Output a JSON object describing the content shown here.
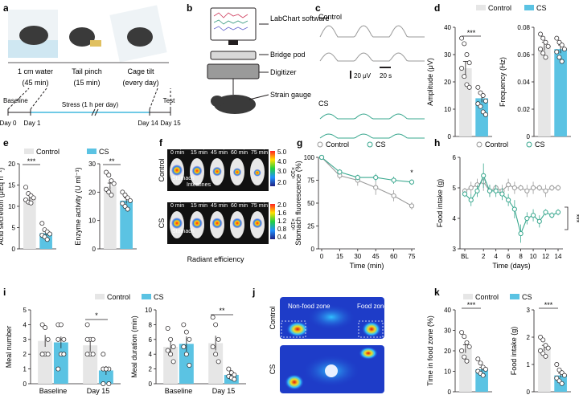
{
  "colors": {
    "control": "#e6e6e6",
    "cs": "#5bc3e3",
    "cs_line": "#3aa88f",
    "control_line": "#9a9a9a",
    "axis": "#231f20"
  },
  "panel_labels": [
    "a",
    "b",
    "c",
    "d",
    "e",
    "f",
    "g",
    "h",
    "i",
    "j",
    "k"
  ],
  "a": {
    "stress_labels": [
      "1 cm water",
      "Tail pinch",
      "Cage tilt"
    ],
    "durations": [
      "(45 min)",
      "(15 min)",
      "(every day)"
    ],
    "timeline": {
      "baseline": "Baseline",
      "stress": "Stress (1 h per day)",
      "test": "Test",
      "days": [
        "Day 0",
        "Day 1",
        "Day 14",
        "Day 15"
      ]
    }
  },
  "b": {
    "labels": [
      "LabChart software",
      "Bridge pod",
      "Digitizer",
      "Strain gauge"
    ]
  },
  "c": {
    "control": "Control",
    "cs": "CS",
    "scale_y": "20 μV",
    "scale_x": "20 s"
  },
  "legend": {
    "control": "Control",
    "cs": "CS"
  },
  "d": {
    "sig": "***"
  },
  "e": {
    "sig1": "***",
    "sig2": "**"
  },
  "f": {
    "cb_ticks": [
      "5.0",
      "4.0",
      "3.0",
      "2.0"
    ],
    "cb2_ticks": [
      "2.0",
      "1.6",
      "1.2",
      "0.8",
      "0.4"
    ],
    "exponent": "×10⁶",
    "times": [
      "0 min",
      "15 min",
      "45 min",
      "60 min",
      "75 min"
    ],
    "stomach": "Stomach",
    "intestine": "Intestines",
    "row_control": "Control",
    "row_cs": "CS",
    "xlabel": "Radiant efficiency"
  },
  "g": {
    "sig": "*"
  },
  "h": {
    "sig": "***"
  },
  "i": {
    "sig1": "*",
    "sig2": "**"
  },
  "j": {
    "nonfood": "Non-food zone",
    "food": "Food zone",
    "row_control": "Control",
    "row_cs": "CS"
  },
  "k": {
    "sig1": "***",
    "sig2": "***"
  },
  "chart_data": [
    {
      "id": "d1",
      "type": "bar",
      "categories": [
        "Control",
        "CS"
      ],
      "values": [
        25,
        14
      ],
      "errors": [
        2.5,
        1.5
      ],
      "ylabel": "Amplitude (μV)",
      "ylim": [
        0,
        40
      ],
      "yticks": [
        0,
        10,
        20,
        30,
        40
      ],
      "points": [
        [
          36,
          34,
          30,
          27,
          25,
          22,
          19,
          18
        ],
        [
          18,
          16,
          15,
          13,
          12,
          11,
          9,
          8
        ]
      ]
    },
    {
      "id": "d2",
      "type": "bar",
      "categories": [
        "Control",
        "CS"
      ],
      "values": [
        0.066,
        0.064
      ],
      "errors": [
        0.003,
        0.003
      ],
      "ylabel": "Frequency (Hz)",
      "ylim": [
        0,
        0.08
      ],
      "yticks": [
        0,
        0.02,
        0.04,
        0.06,
        0.08
      ],
      "points": [
        [
          0.075,
          0.072,
          0.069,
          0.066,
          0.064,
          0.061,
          0.058
        ],
        [
          0.072,
          0.069,
          0.067,
          0.064,
          0.062,
          0.058,
          0.055
        ]
      ]
    },
    {
      "id": "e1",
      "type": "bar",
      "categories": [
        "Control",
        "CS"
      ],
      "values": [
        12,
        3.7
      ],
      "errors": [
        0.6,
        0.5
      ],
      "ylabel": "Acid secretion (μEq h⁻¹)",
      "ylim": [
        0,
        20
      ],
      "yticks": [
        0,
        5,
        10,
        15,
        20
      ],
      "points": [
        [
          14.5,
          13,
          12.5,
          12,
          11.5,
          11,
          10.8
        ],
        [
          6,
          4.5,
          4,
          3.5,
          3.2,
          2.8,
          2.2
        ]
      ]
    },
    {
      "id": "e2",
      "type": "bar",
      "categories": [
        "Control",
        "CS"
      ],
      "values": [
        22,
        17
      ],
      "errors": [
        1.2,
        1
      ],
      "ylabel": "Enzyme activity (U ml⁻¹)",
      "ylim": [
        0,
        30
      ],
      "yticks": [
        0,
        10,
        20,
        30
      ],
      "points": [
        [
          27,
          26,
          24,
          23,
          21,
          20,
          19
        ],
        [
          20,
          19,
          18,
          17,
          16,
          15,
          14
        ]
      ]
    },
    {
      "id": "g",
      "type": "line",
      "x": [
        0,
        15,
        30,
        45,
        60,
        75
      ],
      "xlabel": "Time (min)",
      "ylabel": "Stomach fluorescence (%)",
      "ylim": [
        0,
        100
      ],
      "yticks": [
        0,
        25,
        50,
        75,
        100
      ],
      "xticks": [
        0,
        15,
        30,
        45,
        60,
        75
      ],
      "series": [
        {
          "name": "Control",
          "values": [
            100,
            80,
            75,
            67,
            58,
            47
          ],
          "errors": [
            2,
            4,
            6,
            8,
            6,
            4
          ]
        },
        {
          "name": "CS",
          "values": [
            100,
            84,
            78,
            78,
            75,
            73
          ],
          "errors": [
            2,
            3,
            3,
            4,
            4,
            3
          ]
        }
      ]
    },
    {
      "id": "h",
      "type": "line",
      "x": [
        "BL",
        0,
        1,
        2,
        3,
        4,
        5,
        6,
        7,
        8,
        9,
        10,
        11,
        12,
        13,
        14
      ],
      "xlabel": "Time (days)",
      "ylabel": "Food intake (g)",
      "ylim": [
        3,
        6
      ],
      "yticks": [
        3,
        4,
        5,
        6
      ],
      "xticklabels": [
        "BL",
        "2",
        "4",
        "6",
        "8",
        "10",
        "12",
        "14"
      ],
      "series": [
        {
          "name": "Control",
          "values": [
            4.9,
            5.0,
            5.1,
            5.2,
            4.9,
            5.0,
            4.9,
            5.1,
            5.0,
            5.0,
            4.9,
            5.0,
            5.0,
            4.9,
            5.0,
            5.0
          ],
          "errors": [
            0.1,
            0.2,
            0.2,
            0.3,
            0.2,
            0.1,
            0.2,
            0.2,
            0.2,
            0.1,
            0.2,
            0.2,
            0.1,
            0.2,
            0.1,
            0.1
          ]
        },
        {
          "name": "CS",
          "values": [
            4.8,
            4.6,
            4.9,
            5.4,
            4.9,
            4.9,
            4.8,
            4.6,
            4.3,
            3.5,
            4.0,
            4.1,
            3.9,
            4.2,
            4.1,
            4.2
          ],
          "errors": [
            0.1,
            0.2,
            0.2,
            0.4,
            0.2,
            0.2,
            0.2,
            0.2,
            0.3,
            0.3,
            0.2,
            0.2,
            0.2,
            0.1,
            0.1,
            0.1
          ]
        }
      ]
    },
    {
      "id": "i1",
      "type": "bar",
      "categories": [
        "Baseline",
        "Day 15"
      ],
      "series": [
        {
          "name": "Control",
          "values": [
            2.9,
            2.6
          ],
          "errors": [
            0.4,
            0.4
          ]
        },
        {
          "name": "CS",
          "values": [
            2.8,
            0.9
          ],
          "errors": [
            0.4,
            0.3
          ]
        }
      ],
      "ylabel": "Meal number",
      "ylim": [
        0,
        5
      ],
      "yticks": [
        0,
        1,
        2,
        3,
        4,
        5
      ],
      "points": [
        [
          [
            4,
            3.8,
            3,
            2,
            2,
            2,
            2
          ],
          [
            4,
            4,
            3,
            3,
            2,
            2,
            1
          ]
        ],
        [
          [
            4,
            3,
            3,
            3,
            2,
            2,
            2
          ],
          [
            2,
            1,
            1,
            1,
            1,
            0,
            0
          ]
        ]
      ]
    },
    {
      "id": "i2",
      "type": "bar",
      "categories": [
        "Baseline",
        "Day 15"
      ],
      "series": [
        {
          "name": "Control",
          "values": [
            5,
            5.5
          ],
          "errors": [
            0.8,
            1
          ]
        },
        {
          "name": "CS",
          "values": [
            5.4,
            1.2
          ],
          "errors": [
            1,
            0.3
          ]
        }
      ],
      "ylabel": "Meal duration (min)",
      "ylim": [
        0,
        10
      ],
      "yticks": [
        0,
        2,
        4,
        6,
        8,
        10
      ],
      "points": [
        [
          [
            7.5,
            6,
            5,
            4.5,
            4,
            3
          ],
          [
            8,
            7,
            6,
            5,
            4,
            2.5
          ]
        ],
        [
          [
            9,
            8,
            6,
            5,
            4,
            3
          ],
          [
            2,
            1.5,
            1.2,
            1,
            0.8,
            0.6
          ]
        ]
      ]
    },
    {
      "id": "k1",
      "type": "bar",
      "categories": [
        "Control",
        "CS"
      ],
      "values": [
        21,
        11
      ],
      "errors": [
        2,
        1
      ],
      "ylabel": "Time in food zone (%)",
      "ylim": [
        0,
        40
      ],
      "yticks": [
        0,
        10,
        20,
        30,
        40
      ],
      "points": [
        [
          29,
          27,
          24,
          22,
          20,
          17,
          15
        ],
        [
          16,
          14,
          12,
          11,
          10,
          9,
          8
        ]
      ]
    },
    {
      "id": "k2",
      "type": "bar",
      "categories": [
        "Control",
        "CS"
      ],
      "values": [
        1.6,
        0.6
      ],
      "errors": [
        0.1,
        0.08
      ],
      "ylabel": "Food intake (g)",
      "ylim": [
        0,
        3
      ],
      "yticks": [
        0,
        1,
        2,
        3
      ],
      "points": [
        [
          2.0,
          1.9,
          1.7,
          1.6,
          1.5,
          1.4,
          1.3
        ],
        [
          1.0,
          0.8,
          0.7,
          0.6,
          0.5,
          0.4,
          0.3
        ]
      ]
    }
  ]
}
